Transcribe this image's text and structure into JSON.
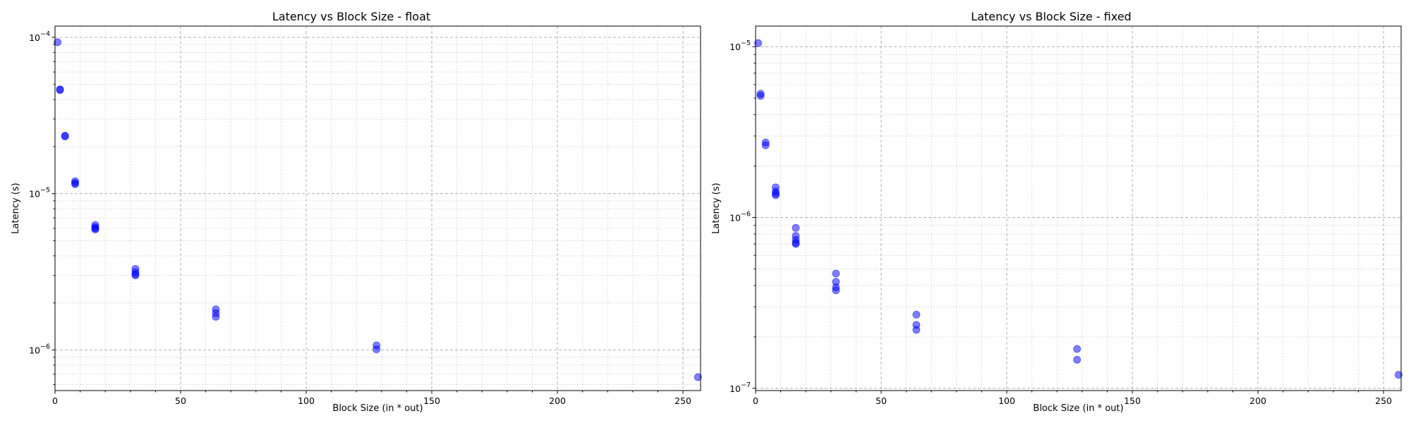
{
  "chart_data": [
    {
      "type": "scatter",
      "title": "Latency vs Block Size - float",
      "xlabel": "Block Size (in * out)",
      "ylabel": "Latency (s)",
      "xlim": [
        0,
        257
      ],
      "ylim": [
        5.5e-07,
        0.000118
      ],
      "yscale": "log",
      "xticks": [
        0,
        50,
        100,
        150,
        200,
        250
      ],
      "yticks": [
        {
          "base": "10",
          "exp": "−6",
          "value": 1e-06
        },
        {
          "base": "10",
          "exp": "−5",
          "value": 1e-05
        },
        {
          "base": "10",
          "exp": "−4",
          "value": 0.0001
        }
      ],
      "grid": true,
      "marker_color": "#0000ff",
      "x": [
        1,
        2,
        2,
        4,
        4,
        8,
        8,
        8,
        16,
        16,
        16,
        16,
        32,
        32,
        32,
        32,
        64,
        64,
        64,
        128,
        128,
        256
      ],
      "y": [
        9.3e-05,
        4.65e-05,
        4.6e-05,
        2.35e-05,
        2.32e-05,
        1.2e-05,
        1.17e-05,
        1.15e-05,
        6.3e-06,
        6.1e-06,
        6e-06,
        5.9e-06,
        3.3e-06,
        3.15e-06,
        3.05e-06,
        3e-06,
        1.82e-06,
        1.72e-06,
        1.63e-06,
        1.07e-06,
        1.01e-06,
        6.7e-07
      ]
    },
    {
      "type": "scatter",
      "title": "Latency vs Block Size - fixed",
      "xlabel": "Block Size (in * out)",
      "ylabel": "Latency (s)",
      "xlim": [
        0,
        257
      ],
      "ylim": [
        9.7e-08,
        1.32e-05
      ],
      "yscale": "log",
      "xticks": [
        0,
        50,
        100,
        150,
        200,
        250
      ],
      "yticks": [
        {
          "base": "10",
          "exp": "−7",
          "value": 1e-07
        },
        {
          "base": "10",
          "exp": "−6",
          "value": 1e-06
        },
        {
          "base": "10",
          "exp": "−5",
          "value": 1e-05
        }
      ],
      "grid": true,
      "marker_color": "#0000ff",
      "x": [
        1,
        2,
        2,
        4,
        4,
        8,
        8,
        8,
        8,
        16,
        16,
        16,
        16,
        16,
        32,
        32,
        32,
        32,
        64,
        64,
        64,
        128,
        128,
        256
      ],
      "y": [
        1.05e-05,
        5.3e-06,
        5.15e-06,
        2.75e-06,
        2.65e-06,
        1.5e-06,
        1.42e-06,
        1.38e-06,
        1.35e-06,
        8.7e-07,
        7.8e-07,
        7.4e-07,
        7.1e-07,
        7e-07,
        4.7e-07,
        4.2e-07,
        3.9e-07,
        3.75e-07,
        2.7e-07,
        2.35e-07,
        2.2e-07,
        1.7e-07,
        1.47e-07,
        1.2e-07
      ]
    }
  ]
}
